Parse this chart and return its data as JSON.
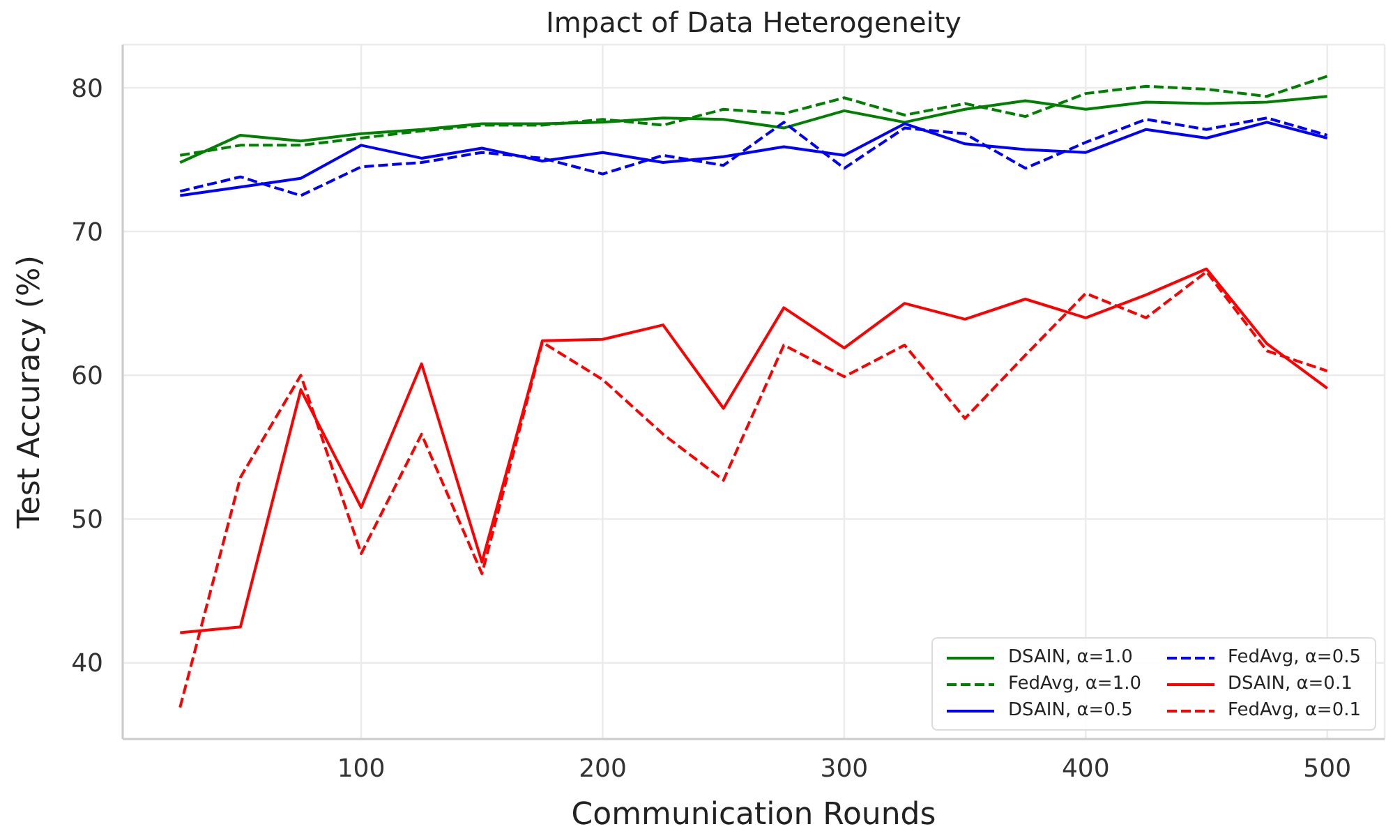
{
  "chart_data": {
    "type": "line",
    "title": "Impact of Data Heterogeneity",
    "xlabel": "Communication Rounds",
    "ylabel": "Test Accuracy (%)",
    "x": [
      25,
      50,
      75,
      100,
      125,
      150,
      175,
      200,
      225,
      250,
      275,
      300,
      325,
      350,
      375,
      400,
      425,
      450,
      475,
      500
    ],
    "series": [
      {
        "name": "DSAIN, α=1.0",
        "color": "#008000",
        "line_style": "solid",
        "values": [
          74.8,
          76.7,
          76.3,
          76.8,
          77.1,
          77.5,
          77.5,
          77.6,
          77.9,
          77.8,
          77.2,
          78.4,
          77.6,
          78.5,
          79.1,
          78.5,
          79.0,
          78.9,
          79.0,
          79.4
        ]
      },
      {
        "name": "FedAvg, α=1.0",
        "color": "#008000",
        "line_style": "dashed",
        "values": [
          75.3,
          76.0,
          76.0,
          76.5,
          77.0,
          77.4,
          77.4,
          77.8,
          77.4,
          78.5,
          78.2,
          79.3,
          78.1,
          78.9,
          78.0,
          79.6,
          80.1,
          79.9,
          79.4,
          80.8
        ]
      },
      {
        "name": "DSAIN, α=0.5",
        "color": "#0000ff",
        "line_style": "solid",
        "values": [
          72.5,
          73.1,
          73.7,
          76.0,
          75.1,
          75.8,
          74.9,
          75.5,
          74.8,
          75.2,
          75.9,
          75.3,
          77.5,
          76.1,
          75.7,
          75.5,
          77.1,
          76.5,
          77.6,
          76.5
        ]
      },
      {
        "name": "FedAvg, α=0.5",
        "color": "#0000ff",
        "line_style": "dashed",
        "values": [
          72.8,
          73.8,
          72.5,
          74.5,
          74.8,
          75.5,
          75.1,
          74.0,
          75.3,
          74.6,
          77.6,
          74.4,
          77.2,
          76.8,
          74.4,
          76.2,
          77.8,
          77.1,
          77.9,
          76.7
        ]
      },
      {
        "name": "DSAIN, α=0.1",
        "color": "#ff0000",
        "line_style": "solid",
        "values": [
          42.1,
          42.5,
          59.0,
          50.8,
          60.8,
          47.0,
          62.4,
          62.5,
          63.5,
          57.7,
          64.7,
          61.9,
          65.0,
          63.9,
          65.3,
          64.0,
          65.6,
          67.4,
          62.2,
          59.1
        ]
      },
      {
        "name": "FedAvg, α=0.1",
        "color": "#ff0000",
        "line_style": "dashed",
        "values": [
          36.9,
          52.9,
          60.0,
          47.6,
          55.9,
          46.2,
          62.3,
          59.7,
          55.9,
          52.7,
          62.1,
          59.9,
          62.1,
          57.0,
          61.4,
          65.7,
          64.0,
          67.2,
          61.7,
          60.3
        ]
      }
    ],
    "xlim": [
      1.25,
      523.75
    ],
    "xticks": [
      100,
      200,
      300,
      400,
      500
    ],
    "ylim": [
      34.7,
      83.0
    ],
    "yticks": [
      40,
      50,
      60,
      70,
      80
    ],
    "grid": true,
    "legend": "bottom right",
    "marker": "none"
  }
}
